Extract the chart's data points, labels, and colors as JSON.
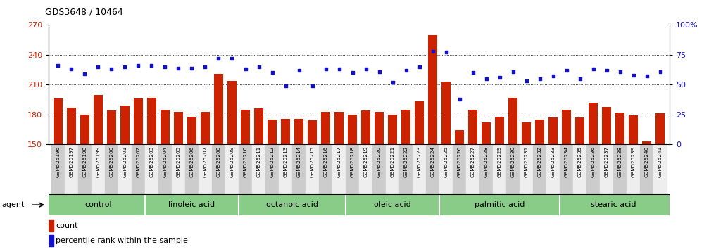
{
  "title": "GDS3648 / 10464",
  "samples": [
    "GSM525196",
    "GSM525197",
    "GSM525198",
    "GSM525199",
    "GSM525200",
    "GSM525201",
    "GSM525202",
    "GSM525203",
    "GSM525204",
    "GSM525205",
    "GSM525206",
    "GSM525207",
    "GSM525208",
    "GSM525209",
    "GSM525210",
    "GSM525211",
    "GSM525212",
    "GSM525213",
    "GSM525214",
    "GSM525215",
    "GSM525216",
    "GSM525217",
    "GSM525218",
    "GSM525219",
    "GSM525220",
    "GSM525221",
    "GSM525222",
    "GSM525223",
    "GSM525224",
    "GSM525225",
    "GSM525226",
    "GSM525227",
    "GSM525228",
    "GSM525229",
    "GSM525230",
    "GSM525231",
    "GSM525232",
    "GSM525233",
    "GSM525234",
    "GSM525235",
    "GSM525236",
    "GSM525237",
    "GSM525238",
    "GSM525239",
    "GSM525240",
    "GSM525241"
  ],
  "bar_values": [
    196,
    187,
    180,
    200,
    184,
    189,
    196,
    197,
    185,
    183,
    178,
    183,
    221,
    214,
    185,
    186,
    175,
    176,
    176,
    174,
    183,
    183,
    180,
    184,
    183,
    180,
    185,
    193,
    260,
    213,
    164,
    185,
    172,
    178,
    197,
    172,
    175,
    177,
    185,
    177,
    192,
    188,
    182,
    179,
    153,
    181
  ],
  "blue_values": [
    66,
    63,
    59,
    65,
    63,
    65,
    66,
    66,
    65,
    64,
    64,
    65,
    72,
    72,
    63,
    65,
    60,
    49,
    62,
    49,
    63,
    63,
    60,
    63,
    61,
    52,
    62,
    65,
    78,
    77,
    38,
    60,
    55,
    56,
    61,
    53,
    55,
    57,
    62,
    55,
    63,
    62,
    61,
    58,
    57,
    61
  ],
  "groups": [
    {
      "label": "control",
      "start": 0,
      "end": 6
    },
    {
      "label": "linoleic acid",
      "start": 7,
      "end": 13
    },
    {
      "label": "octanoic acid",
      "start": 14,
      "end": 21
    },
    {
      "label": "oleic acid",
      "start": 22,
      "end": 28
    },
    {
      "label": "palmitic acid",
      "start": 29,
      "end": 37
    },
    {
      "label": "stearic acid",
      "start": 38,
      "end": 45
    }
  ],
  "bar_color": "#CC2200",
  "dot_color": "#1111CC",
  "ylim_left": [
    150,
    270
  ],
  "ylim_right": [
    0,
    100
  ],
  "yticks_left": [
    150,
    180,
    210,
    240,
    270
  ],
  "yticks_right": [
    0,
    25,
    50,
    75,
    100
  ],
  "ytick_labels_right": [
    "0",
    "25",
    "50",
    "75",
    "100%"
  ],
  "group_bg_color": "#88CC88",
  "header_bg_even": "#CCCCCC",
  "header_bg_odd": "#EEEEEE",
  "agent_label": "agent",
  "legend_count_label": "count",
  "legend_pct_label": "percentile rank within the sample"
}
